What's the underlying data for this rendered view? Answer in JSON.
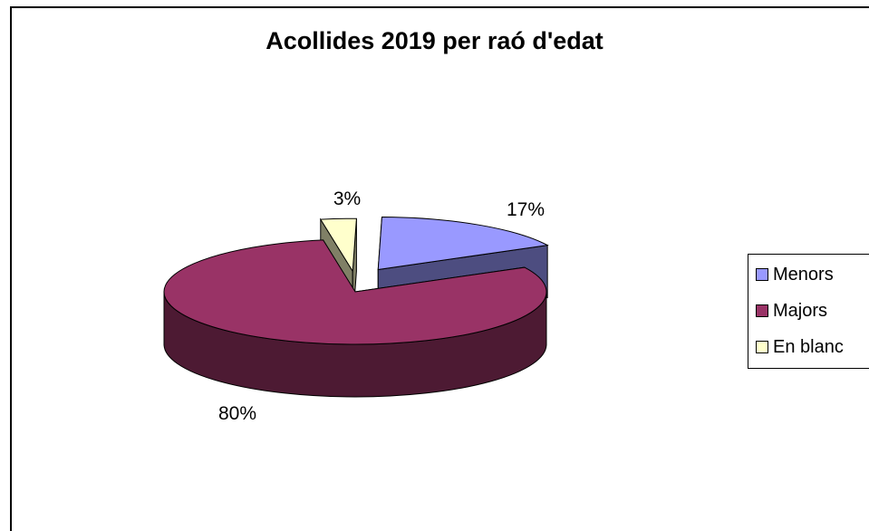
{
  "chart_data": {
    "type": "pie",
    "title": "Acollides 2019 per raó d'edat",
    "categories": [
      "Menors",
      "Majors",
      "En blanc"
    ],
    "values": [
      17,
      80,
      3
    ],
    "data_labels": [
      "17%",
      "80%",
      "3%"
    ],
    "colors": [
      "#9999ff",
      "#993366",
      "#ffffcc"
    ],
    "side_colors": [
      "#4d4d80",
      "#4d1a33",
      "#808066"
    ],
    "legend_position": "right",
    "three_d": true,
    "exploded": true
  }
}
